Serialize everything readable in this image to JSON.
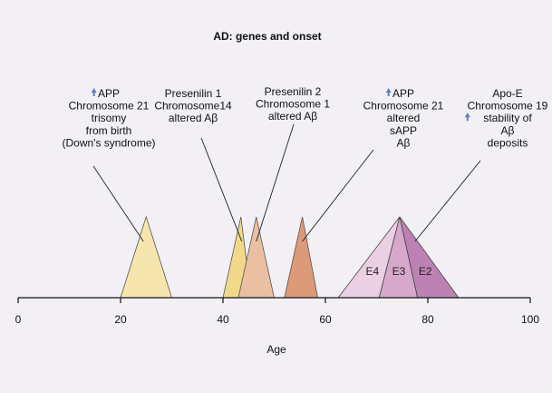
{
  "chart_data": {
    "type": "area",
    "title": "AD: genes and onset",
    "xlabel": "Age",
    "ylabel": "",
    "xlim": [
      0,
      100
    ],
    "x_ticks": [
      "0",
      "20",
      "40",
      "60",
      "80",
      "100"
    ],
    "series": [
      {
        "name": "APP Chromosome 21 trisomy from birth (Down's syndrome)",
        "label_lines": [
          {
            "text": "APP",
            "arrow": true
          },
          {
            "text": "Chromosome 21"
          },
          {
            "text": "trisomy"
          },
          {
            "text": "from birth"
          },
          {
            "text": "(Down's syndrome)"
          }
        ],
        "onset_start": 20,
        "onset_peak": 25,
        "onset_end": 30,
        "relative_height": 0.66,
        "color": "#f6e6ae"
      },
      {
        "name": "Presenilin 1 Chromosome14 altered Aβ",
        "label_lines": [
          {
            "text": "Presenilin 1"
          },
          {
            "text": "Chromosome14"
          },
          {
            "text": "altered Aβ"
          }
        ],
        "onset_start": 40,
        "onset_peak": 43.5,
        "onset_end": 45.5,
        "relative_height": 0.66,
        "color": "#f1d98a"
      },
      {
        "name": "Presenilin 2 Chromosome 1 altered Aβ",
        "label_lines": [
          {
            "text": "Presenilin 2"
          },
          {
            "text": "Chromosome 1"
          },
          {
            "text": "altered Aβ"
          }
        ],
        "onset_start": 43,
        "onset_peak": 46.5,
        "onset_end": 50,
        "relative_height": 0.66,
        "color": "#ebbfa2"
      },
      {
        "name": "APP Chromosome 21 altered sAPP Aβ",
        "label_lines": [
          {
            "text": "APP",
            "arrow": true
          },
          {
            "text": "Chromosome 21"
          },
          {
            "text": "altered"
          },
          {
            "text": "sAPP"
          },
          {
            "text": "Aβ"
          }
        ],
        "onset_start": 52,
        "onset_peak": 55.5,
        "onset_end": 58.5,
        "relative_height": 0.66,
        "color": "#dc9a78"
      },
      {
        "name": "Apo-E Chromosome 19 stability of Aβ deposits",
        "label_lines": [
          {
            "text": "Apo-E"
          },
          {
            "text": "Chromosome 19"
          },
          {
            "text": "stability of",
            "arrow": true
          },
          {
            "text": "Aβ"
          },
          {
            "text": "deposits"
          }
        ],
        "onset_start": 62.5,
        "onset_peak": 74.5,
        "onset_end": 86,
        "relative_height": 0.66,
        "segments": [
          {
            "name": "E4",
            "from": 62.5,
            "to": 70.5,
            "color": "#ebcfe3"
          },
          {
            "name": "E3",
            "from": 70.5,
            "to": 78,
            "color": "#d6a8cc"
          },
          {
            "name": "E2",
            "from": 78,
            "to": 86,
            "color": "#bd82b3"
          }
        ]
      }
    ]
  }
}
